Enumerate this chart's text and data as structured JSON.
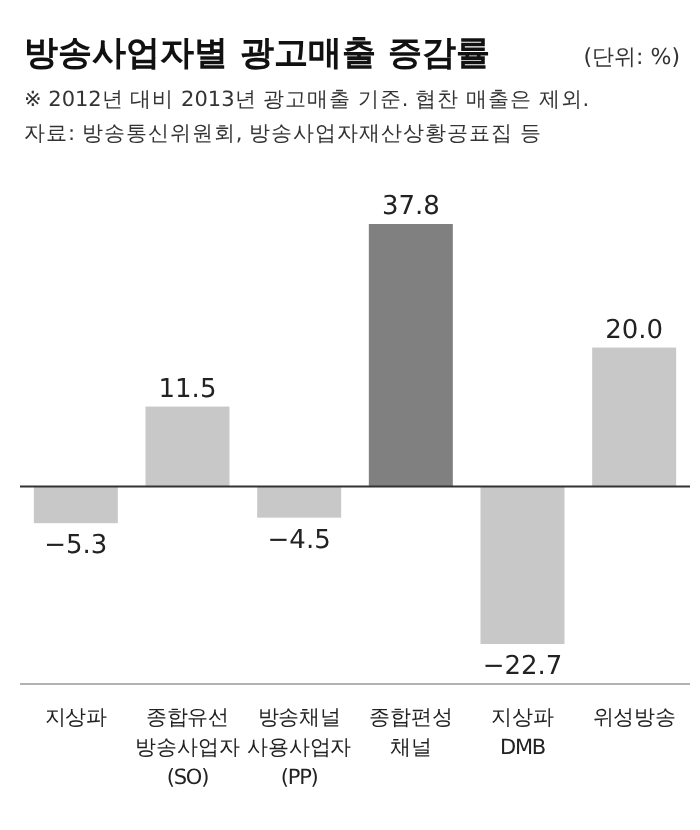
{
  "chart_data": {
    "type": "bar",
    "title": "방송사업자별 광고매출 증감률",
    "subtitle": "(단위: %)",
    "annotations": [
      "※ 2012년 대비 2013년 광고매출 기준. 협찬 매출은 제외.",
      "자료: 방송통신위원회, 방송사업자재산상황공표집 등"
    ],
    "categories": [
      "지상파",
      "종합유선 방송사업자 (SO)",
      "방송채널 사용사업자 (PP)",
      "종합편성 채널",
      "지상파 DMB",
      "위성방송"
    ],
    "values": [
      -5.3,
      11.5,
      -4.5,
      37.8,
      -22.7,
      20.0
    ],
    "value_labels": [
      "−5.3",
      "11.5",
      "−4.5",
      "37.8",
      "−22.7",
      "20.0"
    ],
    "colors": [
      "#c8c8c8",
      "#c8c8c8",
      "#c8c8c8",
      "#808080",
      "#c8c8c8",
      "#c8c8c8"
    ]
  }
}
